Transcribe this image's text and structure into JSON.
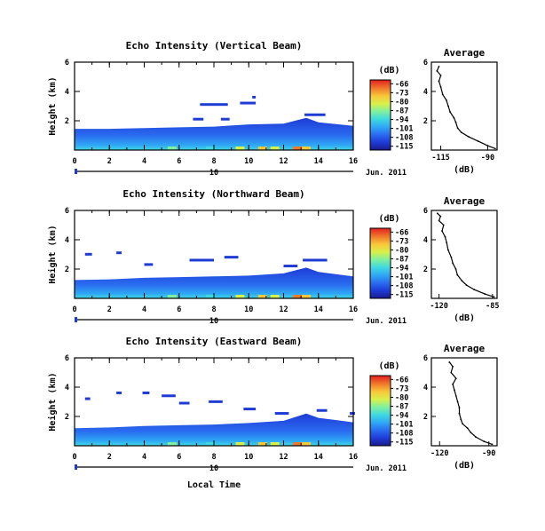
{
  "chart_data": {
    "type": "heatmap",
    "xlabel": "Local Time",
    "date_label": "Jun. 2011",
    "day_label": "10",
    "colorbar": {
      "unit": "(dB)",
      "ticks": [
        "-66",
        "-73",
        "-80",
        "-87",
        "-94",
        "-101",
        "-108",
        "-115"
      ],
      "range": [
        -118,
        -63
      ],
      "colormap": [
        "#1a1a8c",
        "#1e3bd6",
        "#2a6cf0",
        "#2fa8f5",
        "#3fd8e0",
        "#7ff0a0",
        "#d8f04a",
        "#f8c83a",
        "#f07a2a",
        "#e02020"
      ]
    },
    "panels": [
      {
        "title": "Echo Intensity (Vertical Beam)",
        "ylabel": "Height (km)",
        "xlim": [
          0,
          16
        ],
        "ylim": [
          0,
          6
        ],
        "xticks": [
          "0",
          "2",
          "4",
          "6",
          "8",
          "10",
          "12",
          "14",
          "16"
        ],
        "yticks": [
          "6",
          "4",
          "2"
        ],
        "echo_top_km": [
          [
            0,
            1.45
          ],
          [
            2,
            1.45
          ],
          [
            4,
            1.5
          ],
          [
            6,
            1.55
          ],
          [
            8,
            1.6
          ],
          [
            10,
            1.75
          ],
          [
            12,
            1.8
          ],
          [
            13.3,
            2.2
          ],
          [
            14,
            1.9
          ],
          [
            16,
            1.65
          ]
        ],
        "profile": {
          "title": "Average",
          "xlabel": "(dB)",
          "xticks": [
            "-115",
            "-90"
          ],
          "xlim": [
            -120,
            -85
          ],
          "yticks": [
            "6",
            "4",
            "2"
          ],
          "ylim": [
            0,
            6
          ],
          "points": [
            [
              -86,
              0.1
            ],
            [
              -90,
              0.3
            ],
            [
              -95,
              0.6
            ],
            [
              -100,
              0.9
            ],
            [
              -104,
              1.2
            ],
            [
              -106,
              1.5
            ],
            [
              -107,
              1.9
            ],
            [
              -108,
              2.2
            ],
            [
              -110,
              2.6
            ],
            [
              -111,
              3.0
            ],
            [
              -112,
              3.4
            ],
            [
              -114,
              3.8
            ],
            [
              -115,
              4.3
            ],
            [
              -116,
              4.7
            ],
            [
              -115,
              5.1
            ],
            [
              -117,
              5.4
            ],
            [
              -116,
              5.7
            ]
          ]
        }
      },
      {
        "title": "Echo Intensity (Northward Beam)",
        "ylabel": "Height (km)",
        "xlim": [
          0,
          16
        ],
        "ylim": [
          0,
          6
        ],
        "xticks": [
          "0",
          "2",
          "4",
          "6",
          "8",
          "10",
          "12",
          "14",
          "16"
        ],
        "yticks": [
          "6",
          "4",
          "2"
        ],
        "echo_top_km": [
          [
            0,
            1.25
          ],
          [
            2,
            1.3
          ],
          [
            4,
            1.4
          ],
          [
            6,
            1.45
          ],
          [
            8,
            1.5
          ],
          [
            10,
            1.55
          ],
          [
            12,
            1.7
          ],
          [
            13.3,
            2.1
          ],
          [
            14,
            1.8
          ],
          [
            16,
            1.5
          ]
        ],
        "profile": {
          "title": "Average",
          "xlabel": "(dB)",
          "xticks": [
            "-120",
            "-85"
          ],
          "xlim": [
            -125,
            -82
          ],
          "yticks": [
            "6",
            "4",
            "2"
          ],
          "ylim": [
            0,
            6
          ],
          "points": [
            [
              -84,
              0.1
            ],
            [
              -90,
              0.3
            ],
            [
              -97,
              0.6
            ],
            [
              -102,
              0.9
            ],
            [
              -105,
              1.2
            ],
            [
              -108,
              1.6
            ],
            [
              -109,
              2.0
            ],
            [
              -111,
              2.4
            ],
            [
              -112,
              2.8
            ],
            [
              -114,
              3.3
            ],
            [
              -115,
              3.8
            ],
            [
              -116,
              4.2
            ],
            [
              -118,
              4.6
            ],
            [
              -117,
              5.0
            ],
            [
              -120,
              5.3
            ],
            [
              -119,
              5.6
            ],
            [
              -121,
              5.8
            ]
          ]
        }
      },
      {
        "title": "Echo Intensity (Eastward Beam)",
        "ylabel": "Height (km)",
        "xlim": [
          0,
          16
        ],
        "ylim": [
          0,
          6
        ],
        "xticks": [
          "0",
          "2",
          "4",
          "6",
          "8",
          "10",
          "12",
          "14",
          "16"
        ],
        "yticks": [
          "6",
          "4",
          "2"
        ],
        "echo_top_km": [
          [
            0,
            1.2
          ],
          [
            2,
            1.25
          ],
          [
            4,
            1.35
          ],
          [
            6,
            1.4
          ],
          [
            8,
            1.45
          ],
          [
            10,
            1.55
          ],
          [
            12,
            1.7
          ],
          [
            13.3,
            2.2
          ],
          [
            14,
            1.9
          ],
          [
            16,
            1.6
          ]
        ],
        "profile": {
          "title": "Average",
          "xlabel": "(dB)",
          "xticks": [
            "-120",
            "-90"
          ],
          "xlim": [
            -125,
            -85
          ],
          "yticks": [
            "6",
            "4",
            "2"
          ],
          "ylim": [
            0,
            6
          ],
          "points": [
            [
              -88,
              0.1
            ],
            [
              -93,
              0.3
            ],
            [
              -98,
              0.6
            ],
            [
              -101,
              0.9
            ],
            [
              -103,
              1.2
            ],
            [
              -106,
              1.5
            ],
            [
              -107,
              1.8
            ],
            [
              -108,
              2.2
            ],
            [
              -108,
              2.6
            ],
            [
              -109,
              3.0
            ],
            [
              -110,
              3.4
            ],
            [
              -111,
              3.8
            ],
            [
              -112,
              4.2
            ],
            [
              -110,
              4.6
            ],
            [
              -113,
              5.0
            ],
            [
              -112,
              5.4
            ],
            [
              -114,
              5.7
            ]
          ]
        }
      }
    ]
  }
}
